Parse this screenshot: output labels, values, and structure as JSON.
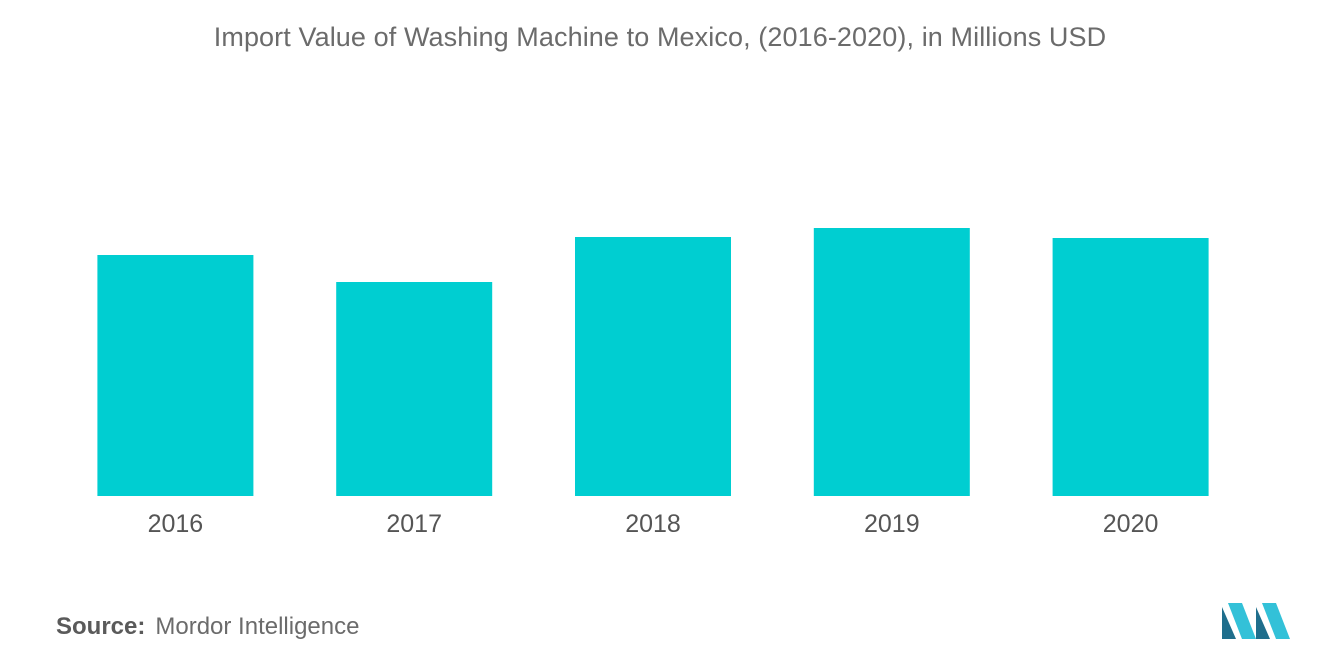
{
  "chart_data": {
    "type": "bar",
    "title": "Import Value of Washing Machine to Mexico, (2016-2020), in Millions USD",
    "categories": [
      "2016",
      "2017",
      "2018",
      "2019",
      "2020"
    ],
    "values": [
      241,
      214,
      259,
      268,
      258
    ],
    "ylim": [
      0,
      300
    ],
    "xlabel": "",
    "ylabel": "",
    "grid": false,
    "legend": "none",
    "bar_color": "#00CED1"
  },
  "footer": {
    "source_label": "Source:",
    "source_value": "Mordor Intelligence"
  },
  "logo": {
    "icon": "mordor-intelligence-logo-icon",
    "color_dark": "#1F6E8C",
    "color_light": "#33C1D8"
  }
}
